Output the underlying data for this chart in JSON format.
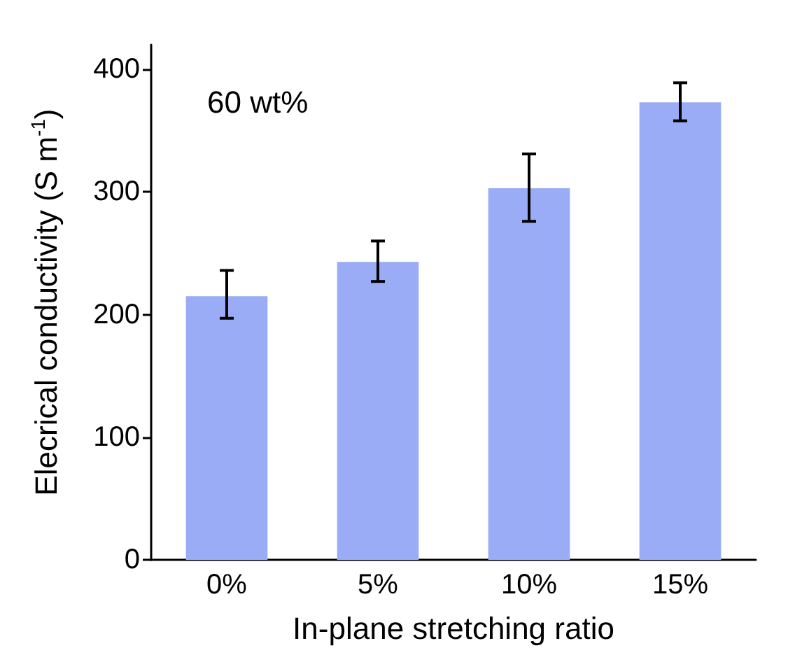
{
  "chart_data": {
    "type": "bar",
    "xlabel": "In-plane stretching ratio",
    "ylabel": "Elecrical conductivity (S m$^{-1}$)",
    "categories": [
      "0%",
      "5%",
      "10%",
      "15%"
    ],
    "values": [
      215,
      243,
      303,
      373
    ],
    "errors": [
      [
        197,
        236
      ],
      [
        227,
        260
      ],
      [
        276,
        331
      ],
      [
        358,
        389
      ]
    ],
    "color": "#9aacf6",
    "ylim": [
      0,
      420
    ],
    "yticks": [
      0,
      100,
      200,
      300,
      400
    ],
    "annotations": [
      "60 wt%"
    ]
  }
}
